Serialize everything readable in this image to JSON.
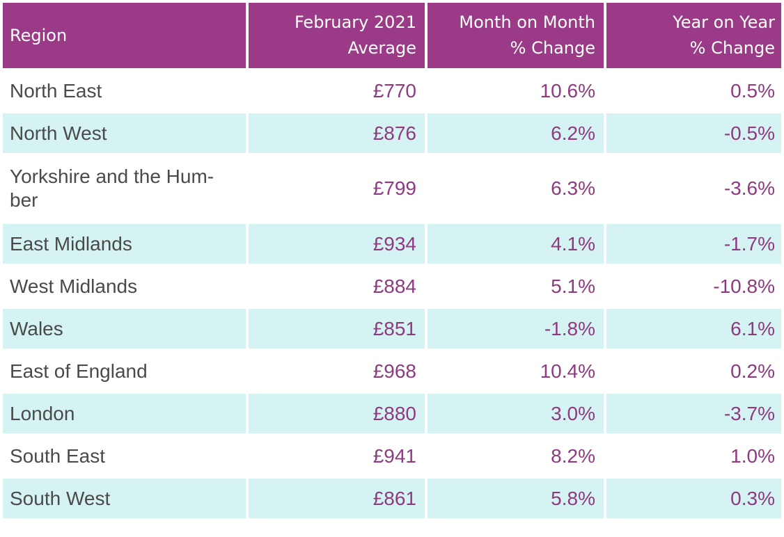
{
  "header": {
    "region": "Region",
    "avg_line1": "February 2021",
    "avg_line2": "Average",
    "mom_line1": "Month on Month",
    "mom_line2": "% Change",
    "yoy_line1": "Year on Year",
    "yoy_line2": "% Change"
  },
  "rows": [
    {
      "region": "North East",
      "average": "£770",
      "mom": "10.6%",
      "yoy": "0.5%"
    },
    {
      "region": "North West",
      "average": "£876",
      "mom": "6.2%",
      "yoy": "-0.5%"
    },
    {
      "region_line1": "Yorkshire and the Hum-",
      "region_line2": "ber",
      "average": "£799",
      "mom": "6.3%",
      "yoy": "-3.6%"
    },
    {
      "region": "East Midlands",
      "average": "£934",
      "mom": "4.1%",
      "yoy": "-1.7%"
    },
    {
      "region": "West Midlands",
      "average": "£884",
      "mom": "5.1%",
      "yoy": "-10.8%"
    },
    {
      "region": "Wales",
      "average": "£851",
      "mom": "-1.8%",
      "yoy": "6.1%"
    },
    {
      "region": "East of England",
      "average": "£968",
      "mom": "10.4%",
      "yoy": "0.2%"
    },
    {
      "region": "London",
      "average": "£880",
      "mom": "3.0%",
      "yoy": "-3.7%"
    },
    {
      "region": "South East",
      "average": "£941",
      "mom": "8.2%",
      "yoy": "1.0%"
    },
    {
      "region": "South West",
      "average": "£861",
      "mom": "5.8%",
      "yoy": "0.3%"
    }
  ],
  "colors": {
    "header_bg": "#9b3a86",
    "header_text": "#ffffff",
    "alt_row_bg": "#d6f3f3",
    "region_text": "#4a4a4a",
    "value_text": "#8e3a80"
  }
}
